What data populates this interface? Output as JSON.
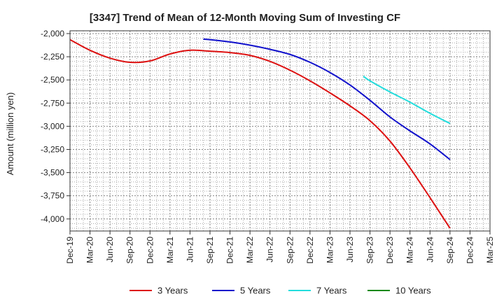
{
  "chart_data": {
    "type": "line",
    "title": "[3347]  Trend of Mean of 12-Month Moving Sum of Investing CF",
    "xlabel": "",
    "ylabel": "Amount (million yen)",
    "ylim": [
      -4130,
      -1970
    ],
    "yticks": [
      -2000,
      -2250,
      -2500,
      -2750,
      -3000,
      -3250,
      -3500,
      -3750,
      -4000
    ],
    "ytick_labels": [
      "-2,000",
      "-2,250",
      "-2,500",
      "-2,750",
      "-3,000",
      "-3,250",
      "-3,500",
      "-3,750",
      "-4,000"
    ],
    "x_categories": [
      "Dec-19",
      "Mar-20",
      "Jun-20",
      "Sep-20",
      "Dec-20",
      "Mar-21",
      "Jun-21",
      "Sep-21",
      "Dec-21",
      "Mar-22",
      "Jun-22",
      "Sep-22",
      "Dec-22",
      "Mar-23",
      "Jun-23",
      "Sep-23",
      "Dec-23",
      "Mar-24",
      "Jun-24",
      "Sep-24",
      "Dec-24",
      "Mar-25"
    ],
    "grid": true,
    "legend_position": "bottom",
    "series": [
      {
        "name": "3 Years",
        "color": "#dd1111",
        "points": [
          [
            0,
            -2065
          ],
          [
            1,
            -2180
          ],
          [
            2,
            -2265
          ],
          [
            3,
            -2310
          ],
          [
            4,
            -2295
          ],
          [
            5,
            -2220
          ],
          [
            6,
            -2180
          ],
          [
            7,
            -2190
          ],
          [
            8,
            -2205
          ],
          [
            9,
            -2235
          ],
          [
            10,
            -2300
          ],
          [
            11,
            -2395
          ],
          [
            12,
            -2510
          ],
          [
            13,
            -2640
          ],
          [
            14,
            -2780
          ],
          [
            15,
            -2940
          ],
          [
            16,
            -3160
          ],
          [
            17,
            -3450
          ],
          [
            18,
            -3770
          ],
          [
            19,
            -4100
          ]
        ]
      },
      {
        "name": "5 Years",
        "color": "#1111cc",
        "points": [
          [
            6.667,
            -2060
          ],
          [
            7,
            -2065
          ],
          [
            8,
            -2090
          ],
          [
            9,
            -2125
          ],
          [
            10,
            -2170
          ],
          [
            11,
            -2225
          ],
          [
            12,
            -2310
          ],
          [
            13,
            -2420
          ],
          [
            14,
            -2555
          ],
          [
            15,
            -2720
          ],
          [
            16,
            -2900
          ],
          [
            17,
            -3050
          ],
          [
            18,
            -3190
          ],
          [
            19,
            -3360
          ]
        ]
      },
      {
        "name": "7 Years",
        "color": "#22dddd",
        "points": [
          [
            14.667,
            -2460
          ],
          [
            15,
            -2510
          ],
          [
            16,
            -2630
          ],
          [
            17,
            -2740
          ],
          [
            18,
            -2860
          ],
          [
            19,
            -2970
          ]
        ]
      },
      {
        "name": "10 Years",
        "color": "#118811",
        "points": []
      }
    ]
  }
}
